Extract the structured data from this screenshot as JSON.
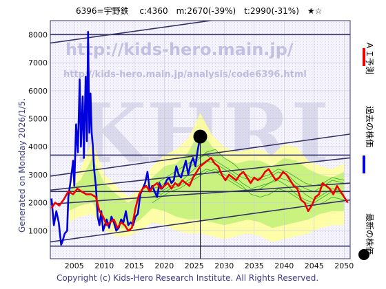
{
  "header": {
    "title": "6396=宇野鉄　 c:4360　m:2670(-39%)　t:2990(-31%)　★☆"
  },
  "side_text": "Generated on Monday 2026/1/5.",
  "copyright": "Copyright (c) Kids-Hero Research Institute. All Rights Reserved.",
  "watermark": {
    "url1": "http://kids-hero.main.jp/",
    "url2": "http://kids-hero.main.jp/analysis/code6396.html",
    "big": "KHRI"
  },
  "legend": [
    {
      "label": "ＡＩ予測",
      "color": "#ee0000"
    },
    {
      "label": "過去の株価",
      "color": "#0000dd"
    },
    {
      "label": "最新の株価",
      "color": "#000000"
    }
  ],
  "colors": {
    "band_outer": "#ffff99",
    "band_inner": "#66dd33",
    "frame": "#333366"
  },
  "chart_data": {
    "type": "line",
    "xlim": [
      2001,
      2051
    ],
    "ylim": [
      0,
      8500
    ],
    "x_ticks": [
      2005,
      2010,
      2015,
      2020,
      2025,
      2030,
      2035,
      2040,
      2045,
      2050
    ],
    "y_ticks": [
      1000,
      2000,
      3000,
      4000,
      5000,
      6000,
      7000,
      8000
    ],
    "latest": {
      "x": 2026.0,
      "y": 4360
    },
    "series": [
      {
        "name": "過去の株価",
        "color": "#0000dd",
        "x": [
          2001.2,
          2001.6,
          2002.0,
          2002.4,
          2002.8,
          2003.0,
          2003.4,
          2003.8,
          2004.0,
          2004.4,
          2004.8,
          2005.0,
          2005.3,
          2005.6,
          2005.9,
          2006.1,
          2006.4,
          2006.6,
          2006.9,
          2007.1,
          2007.3,
          2007.5,
          2007.7,
          2007.9,
          2008.1,
          2008.3,
          2008.6,
          2008.9,
          2009.2,
          2009.5,
          2009.8,
          2010.1,
          2010.4,
          2010.8,
          2011.2,
          2011.6,
          2012.0,
          2012.4,
          2012.8,
          2013.2,
          2013.6,
          2014.0,
          2014.4,
          2014.8,
          2015.2,
          2015.6,
          2016.0,
          2016.4,
          2016.8,
          2017.2,
          2017.6,
          2018.0,
          2018.4,
          2018.8,
          2019.2,
          2019.6,
          2020.0,
          2020.4,
          2020.8,
          2021.2,
          2021.6,
          2022.0,
          2022.4,
          2022.8,
          2023.2,
          2023.6,
          2024.0,
          2024.4,
          2024.8,
          2025.2,
          2025.6,
          2026.0
        ],
        "y": [
          2150,
          1200,
          1700,
          1300,
          500,
          600,
          900,
          1000,
          2200,
          2800,
          3500,
          2600,
          4800,
          3800,
          6400,
          4000,
          5800,
          3600,
          6500,
          4200,
          8100,
          4500,
          5900,
          4500,
          4000,
          3200,
          2600,
          1500,
          1200,
          1700,
          1000,
          1200,
          1400,
          1100,
          1500,
          1300,
          1000,
          1100,
          1400,
          1300,
          1700,
          1200,
          1300,
          1200,
          1500,
          1600,
          2300,
          2500,
          2700,
          3100,
          2400,
          2600,
          2400,
          2200,
          2700,
          2500,
          2600,
          2800,
          2900,
          2700,
          2800,
          3300,
          3000,
          2900,
          3200,
          3500,
          3000,
          3400,
          3600,
          3300,
          3900,
          4360
        ]
      },
      {
        "name": "ＡＩ予測",
        "color": "#ee0000",
        "x": [
          2001.2,
          2001.8,
          2002.5,
          2003.2,
          2004.0,
          2004.8,
          2005.5,
          2006.2,
          2007.0,
          2007.8,
          2008.6,
          2009.2,
          2009.8,
          2010.4,
          2011.0,
          2011.6,
          2012.2,
          2012.8,
          2013.4,
          2014.0,
          2014.6,
          2015.2,
          2015.8,
          2016.4,
          2017.0,
          2017.6,
          2018.2,
          2018.8,
          2019.4,
          2020.0,
          2020.6,
          2021.2,
          2021.8,
          2022.4,
          2023.0,
          2023.6,
          2024.2,
          2024.8,
          2025.4,
          2026.0,
          2026.6,
          2027.2,
          2027.8,
          2028.4,
          2029.0,
          2029.6,
          2030.2,
          2030.8,
          2031.4,
          2032.0,
          2032.6,
          2033.2,
          2033.8,
          2034.4,
          2035.0,
          2035.6,
          2036.2,
          2036.8,
          2037.4,
          2038.0,
          2038.6,
          2039.2,
          2039.8,
          2040.4,
          2041.0,
          2041.6,
          2042.2,
          2042.8,
          2043.4,
          2044.0,
          2044.6,
          2045.2,
          2045.8,
          2046.4,
          2047.0,
          2047.6,
          2048.2,
          2048.8,
          2049.4,
          2050.0,
          2050.6
        ],
        "y": [
          1800,
          2000,
          1900,
          2100,
          2400,
          2300,
          2500,
          2400,
          2300,
          2300,
          2200,
          1700,
          1500,
          1200,
          1300,
          1400,
          1100,
          1300,
          1200,
          1000,
          1100,
          1800,
          2300,
          2500,
          2600,
          2400,
          2600,
          2700,
          2500,
          2600,
          2700,
          2500,
          2700,
          2600,
          2800,
          2700,
          2600,
          2900,
          3100,
          3300,
          3400,
          3500,
          3600,
          3400,
          3300,
          3000,
          2800,
          3000,
          2900,
          2800,
          3000,
          3100,
          2900,
          2700,
          2900,
          2800,
          2900,
          3100,
          3200,
          3000,
          2800,
          2900,
          3100,
          3000,
          2800,
          2600,
          2500,
          2100,
          2000,
          1700,
          1900,
          2200,
          2300,
          2700,
          2600,
          2500,
          2300,
          2600,
          2400,
          2200,
          2000
        ]
      }
    ],
    "reference_lines": [
      {
        "from": [
          2001,
          8000
        ],
        "to": [
          2051,
          8000
        ]
      },
      {
        "from": [
          2001,
          3700
        ],
        "to": [
          2051,
          3700
        ]
      },
      {
        "from": [
          2001,
          2400
        ],
        "to": [
          2051,
          2400
        ]
      },
      {
        "from": [
          2001,
          450
        ],
        "to": [
          2051,
          450
        ]
      },
      {
        "from": [
          2001,
          2950
        ],
        "to": [
          2051,
          4450
        ]
      },
      {
        "from": [
          2001,
          2450
        ],
        "to": [
          2051,
          3600
        ]
      },
      {
        "from": [
          2001,
          1950
        ],
        "to": [
          2051,
          2700
        ]
      },
      {
        "from": [
          2001,
          600
        ],
        "to": [
          2051,
          2100
        ]
      },
      {
        "from": [
          2001,
          7700
        ],
        "to": [
          2051,
          9200
        ]
      }
    ],
    "green_lines": [
      [
        2500,
        2600,
        2900,
        3000,
        3200,
        3500,
        3800,
        3900,
        3600,
        3400,
        3100,
        2900,
        2800,
        2900,
        3100,
        3000,
        2700,
        2500,
        2400,
        2600,
        2800,
        2700
      ],
      [
        2200,
        2400,
        2600,
        2700,
        3000,
        3300,
        3500,
        3400,
        3200,
        3000,
        2700,
        2500,
        2600,
        2700,
        2800,
        2600,
        2300,
        2100,
        2000,
        2200,
        2400,
        2300
      ],
      [
        2400,
        2300,
        2500,
        2600,
        2800,
        3000,
        3200,
        3100,
        2900,
        2700,
        2500,
        2400,
        2500,
        2700,
        2900,
        2800,
        2600,
        2300,
        2100,
        2300,
        2500,
        2400
      ],
      [
        2000,
        2200,
        2400,
        2500,
        2700,
        2900,
        3100,
        3200,
        3000,
        2800,
        2600,
        2300,
        2200,
        2300,
        2500,
        2400,
        2200,
        2000,
        1900,
        2000,
        2200,
        2100
      ],
      [
        2600,
        2800,
        3000,
        3200,
        3400,
        3600,
        3700,
        3500,
        3300,
        3100,
        2900,
        2800,
        2900,
        3000,
        3200,
        3100,
        2900,
        2700,
        2600,
        2700,
        2900,
        2800
      ]
    ],
    "green_x": [
      2018,
      2019.5,
      2021,
      2022.5,
      2024,
      2025.5,
      2027,
      2028.5,
      2030,
      2031.5,
      2033,
      2034.5,
      2036,
      2037.5,
      2039,
      2040.5,
      2042,
      2043.5,
      2045,
      2046.5,
      2048,
      2050
    ],
    "band_yellow": {
      "x": [
        2004,
        2006,
        2008,
        2010,
        2012,
        2014,
        2016,
        2018,
        2020,
        2022,
        2024,
        2026,
        2028,
        2030,
        2032,
        2034,
        2036,
        2038,
        2040,
        2042,
        2044,
        2046,
        2048,
        2050
      ],
      "upper": [
        2700,
        3200,
        4200,
        3000,
        2600,
        2200,
        2500,
        3300,
        3700,
        3900,
        4300,
        5200,
        4400,
        4000,
        3800,
        3900,
        3900,
        3700,
        4100,
        4000,
        3500,
        3300,
        3200,
        3400
      ],
      "lower": [
        1300,
        1500,
        1600,
        1000,
        800,
        800,
        1000,
        1300,
        1200,
        1000,
        900,
        900,
        800,
        700,
        800,
        900,
        800,
        600,
        700,
        800,
        900,
        1100,
        1200,
        1200
      ]
    },
    "band_green": {
      "x": [
        2004,
        2006,
        2008,
        2010,
        2012,
        2014,
        2016,
        2018,
        2020,
        2022,
        2024,
        2026,
        2028,
        2030,
        2032,
        2034,
        2036,
        2038,
        2040,
        2042,
        2044,
        2046,
        2048,
        2050
      ],
      "upper": [
        2500,
        2800,
        3600,
        2700,
        2300,
        2000,
        2300,
        2900,
        3300,
        3400,
        3800,
        4600,
        4000,
        3600,
        3400,
        3500,
        3500,
        3300,
        3600,
        3500,
        3200,
        3000,
        2900,
        3100
      ],
      "lower": [
        1700,
        1900,
        2000,
        1400,
        1100,
        1100,
        1400,
        1800,
        1700,
        1500,
        1400,
        1400,
        1300,
        1200,
        1300,
        1400,
        1300,
        1100,
        1200,
        1300,
        1400,
        1600,
        1700,
        1700
      ]
    },
    "vertical_marker_x": 2026.0
  }
}
